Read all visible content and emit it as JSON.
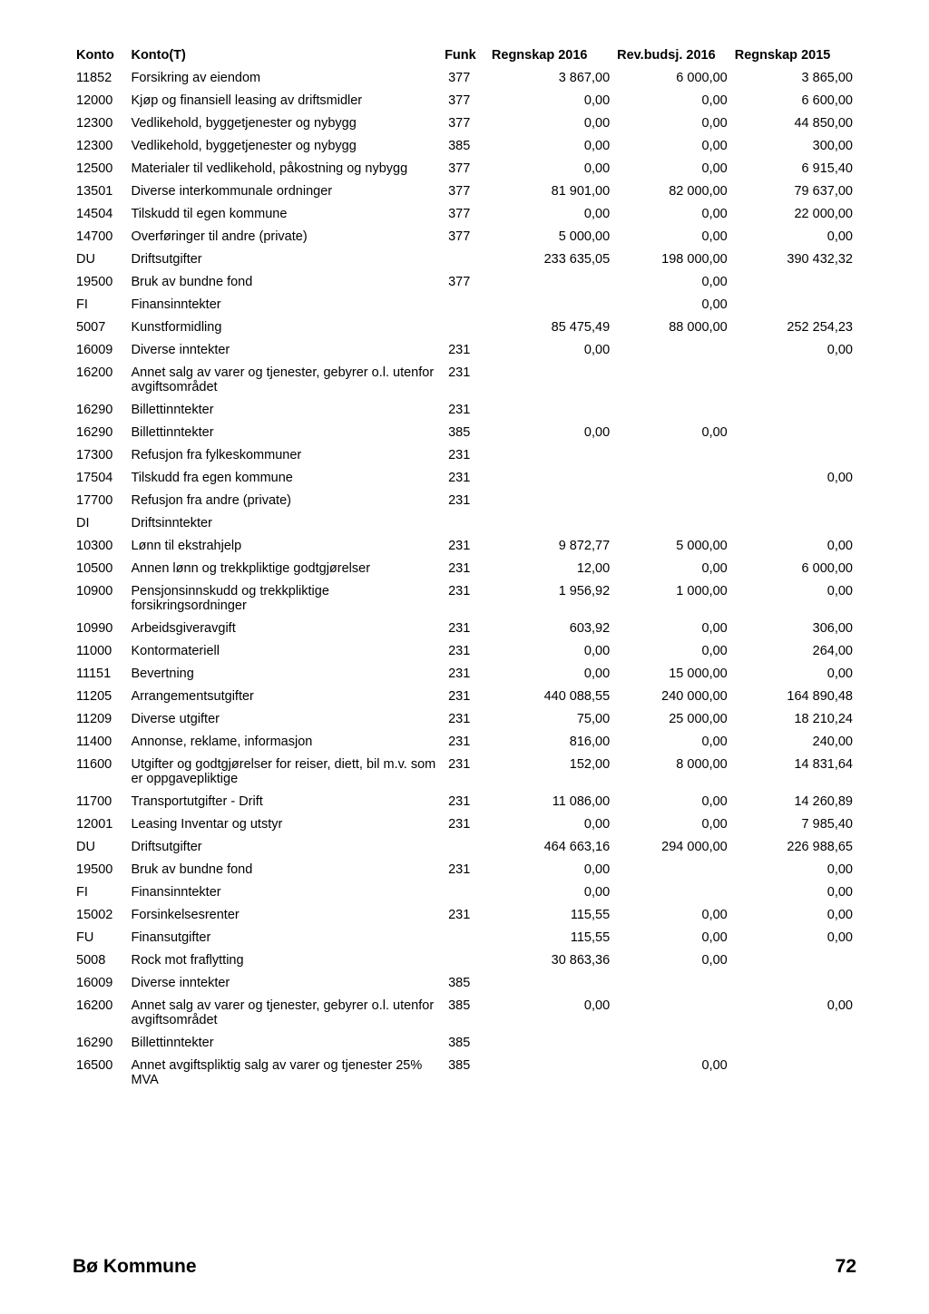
{
  "headers": {
    "konto": "Konto",
    "kontot": "Konto(T)",
    "funk": "Funk",
    "regnskap2016": "Regnskap 2016",
    "revbudsj2016": "Rev.budsj. 2016",
    "regnskap2015": "Regnskap 2015"
  },
  "rows": [
    {
      "konto": "11852",
      "kontot": "Forsikring av eiendom",
      "funk": "377",
      "r2016": "3 867,00",
      "rev": "6 000,00",
      "r2015": "3 865,00"
    },
    {
      "konto": "12000",
      "kontot": "Kjøp og finansiell leasing av driftsmidler",
      "funk": "377",
      "r2016": "0,00",
      "rev": "0,00",
      "r2015": "6 600,00"
    },
    {
      "konto": "12300",
      "kontot": "Vedlikehold, byggetjenester og nybygg",
      "funk": "377",
      "r2016": "0,00",
      "rev": "0,00",
      "r2015": "44 850,00"
    },
    {
      "konto": "12300",
      "kontot": "Vedlikehold, byggetjenester og nybygg",
      "funk": "385",
      "r2016": "0,00",
      "rev": "0,00",
      "r2015": "300,00"
    },
    {
      "konto": "12500",
      "kontot": "Materialer til vedlikehold, påkostning og nybygg",
      "funk": "377",
      "r2016": "0,00",
      "rev": "0,00",
      "r2015": "6 915,40"
    },
    {
      "konto": "13501",
      "kontot": "Diverse interkommunale ordninger",
      "funk": "377",
      "r2016": "81 901,00",
      "rev": "82 000,00",
      "r2015": "79 637,00"
    },
    {
      "konto": "14504",
      "kontot": "Tilskudd til egen kommune",
      "funk": "377",
      "r2016": "0,00",
      "rev": "0,00",
      "r2015": "22 000,00"
    },
    {
      "konto": "14700",
      "kontot": "Overføringer til andre (private)",
      "funk": "377",
      "r2016": "5 000,00",
      "rev": "0,00",
      "r2015": "0,00"
    },
    {
      "konto": "DU",
      "kontot": "Driftsutgifter",
      "funk": "",
      "r2016": "233 635,05",
      "rev": "198 000,00",
      "r2015": "390 432,32"
    },
    {
      "konto": "19500",
      "kontot": "Bruk av bundne fond",
      "funk": "377",
      "r2016": "",
      "rev": "0,00",
      "r2015": ""
    },
    {
      "konto": "FI",
      "kontot": "Finansinntekter",
      "funk": "",
      "r2016": "",
      "rev": "0,00",
      "r2015": ""
    },
    {
      "konto": "5007",
      "kontot": "Kunstformidling",
      "funk": "",
      "r2016": "85 475,49",
      "rev": "88 000,00",
      "r2015": "252 254,23"
    },
    {
      "konto": "16009",
      "kontot": "Diverse inntekter",
      "funk": "231",
      "r2016": "0,00",
      "rev": "",
      "r2015": "0,00"
    },
    {
      "konto": "16200",
      "kontot": "Annet salg av varer og tjenester, gebyrer o.l. utenfor avgiftsområdet",
      "funk": "231",
      "r2016": "",
      "rev": "",
      "r2015": ""
    },
    {
      "konto": "16290",
      "kontot": "Billettinntekter",
      "funk": "231",
      "r2016": "",
      "rev": "",
      "r2015": ""
    },
    {
      "konto": "16290",
      "kontot": "Billettinntekter",
      "funk": "385",
      "r2016": "0,00",
      "rev": "0,00",
      "r2015": ""
    },
    {
      "konto": "17300",
      "kontot": "Refusjon fra fylkeskommuner",
      "funk": "231",
      "r2016": "",
      "rev": "",
      "r2015": ""
    },
    {
      "konto": "17504",
      "kontot": "Tilskudd fra egen kommune",
      "funk": "231",
      "r2016": "",
      "rev": "",
      "r2015": "0,00"
    },
    {
      "konto": "17700",
      "kontot": "Refusjon fra andre (private)",
      "funk": "231",
      "r2016": "",
      "rev": "",
      "r2015": ""
    },
    {
      "konto": "DI",
      "kontot": "Driftsinntekter",
      "funk": "",
      "r2016": "",
      "rev": "",
      "r2015": ""
    },
    {
      "konto": "10300",
      "kontot": "Lønn til ekstrahjelp",
      "funk": "231",
      "r2016": "9 872,77",
      "rev": "5 000,00",
      "r2015": "0,00"
    },
    {
      "konto": "10500",
      "kontot": "Annen lønn og trekkpliktige godtgjørelser",
      "funk": "231",
      "r2016": "12,00",
      "rev": "0,00",
      "r2015": "6 000,00"
    },
    {
      "konto": "10900",
      "kontot": "Pensjonsinnskudd og trekkpliktige forsikringsordninger",
      "funk": "231",
      "r2016": "1 956,92",
      "rev": "1 000,00",
      "r2015": "0,00"
    },
    {
      "konto": "10990",
      "kontot": "Arbeidsgiveravgift",
      "funk": "231",
      "r2016": "603,92",
      "rev": "0,00",
      "r2015": "306,00"
    },
    {
      "konto": "11000",
      "kontot": "Kontormateriell",
      "funk": "231",
      "r2016": "0,00",
      "rev": "0,00",
      "r2015": "264,00"
    },
    {
      "konto": "11151",
      "kontot": "Bevertning",
      "funk": "231",
      "r2016": "0,00",
      "rev": "15 000,00",
      "r2015": "0,00"
    },
    {
      "konto": "11205",
      "kontot": "Arrangementsutgifter",
      "funk": "231",
      "r2016": "440 088,55",
      "rev": "240 000,00",
      "r2015": "164 890,48"
    },
    {
      "konto": "11209",
      "kontot": "Diverse utgifter",
      "funk": "231",
      "r2016": "75,00",
      "rev": "25 000,00",
      "r2015": "18 210,24"
    },
    {
      "konto": "11400",
      "kontot": "Annonse, reklame, informasjon",
      "funk": "231",
      "r2016": "816,00",
      "rev": "0,00",
      "r2015": "240,00"
    },
    {
      "konto": "11600",
      "kontot": "Utgifter og godtgjørelser for reiser, diett, bil m.v. som er oppgavepliktige",
      "funk": "231",
      "r2016": "152,00",
      "rev": "8 000,00",
      "r2015": "14 831,64"
    },
    {
      "konto": "11700",
      "kontot": "Transportutgifter - Drift",
      "funk": "231",
      "r2016": "11 086,00",
      "rev": "0,00",
      "r2015": "14 260,89"
    },
    {
      "konto": "12001",
      "kontot": "Leasing Inventar og utstyr",
      "funk": "231",
      "r2016": "0,00",
      "rev": "0,00",
      "r2015": "7 985,40"
    },
    {
      "konto": "DU",
      "kontot": "Driftsutgifter",
      "funk": "",
      "r2016": "464 663,16",
      "rev": "294 000,00",
      "r2015": "226 988,65"
    },
    {
      "konto": "19500",
      "kontot": "Bruk av bundne fond",
      "funk": "231",
      "r2016": "0,00",
      "rev": "",
      "r2015": "0,00"
    },
    {
      "konto": "FI",
      "kontot": "Finansinntekter",
      "funk": "",
      "r2016": "0,00",
      "rev": "",
      "r2015": "0,00"
    },
    {
      "konto": "15002",
      "kontot": "Forsinkelsesrenter",
      "funk": "231",
      "r2016": "115,55",
      "rev": "0,00",
      "r2015": "0,00"
    },
    {
      "konto": "FU",
      "kontot": "Finansutgifter",
      "funk": "",
      "r2016": "115,55",
      "rev": "0,00",
      "r2015": "0,00"
    },
    {
      "konto": "5008",
      "kontot": "Rock mot fraflytting",
      "funk": "",
      "r2016": "30 863,36",
      "rev": "0,00",
      "r2015": ""
    },
    {
      "konto": "16009",
      "kontot": "Diverse inntekter",
      "funk": "385",
      "r2016": "",
      "rev": "",
      "r2015": ""
    },
    {
      "konto": "16200",
      "kontot": "Annet salg av varer og tjenester, gebyrer o.l. utenfor avgiftsområdet",
      "funk": "385",
      "r2016": "0,00",
      "rev": "",
      "r2015": "0,00"
    },
    {
      "konto": "16290",
      "kontot": "Billettinntekter",
      "funk": "385",
      "r2016": "",
      "rev": "",
      "r2015": ""
    },
    {
      "konto": "16500",
      "kontot": "Annet avgiftspliktig salg av varer og tjenester 25% MVA",
      "funk": "385",
      "r2016": "",
      "rev": "0,00",
      "r2015": ""
    }
  ],
  "footer": {
    "org": "Bø Kommune",
    "page": "72"
  }
}
